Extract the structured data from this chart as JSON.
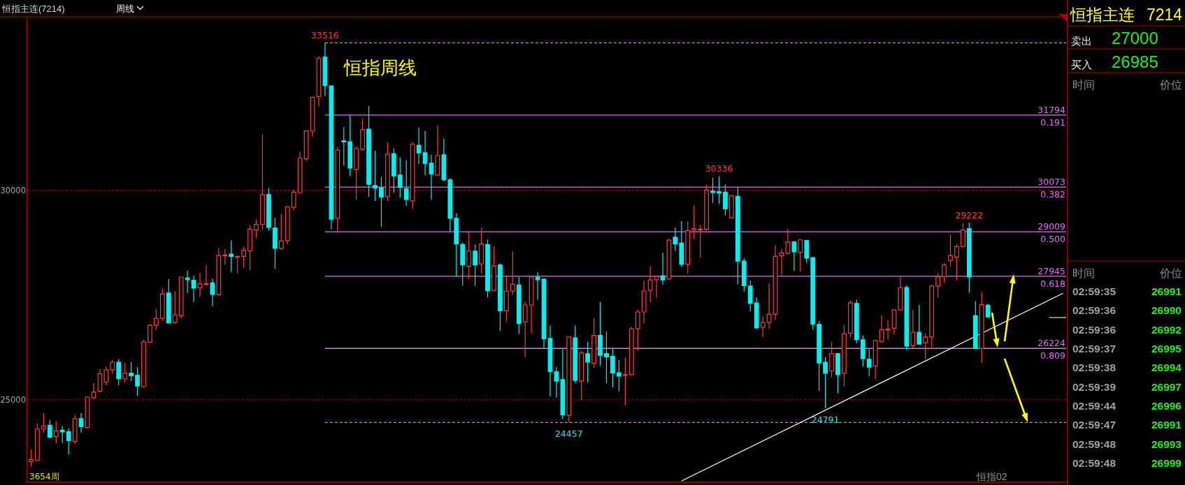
{
  "chart_data": [
    {
      "type": "candlestick",
      "title": "恒指主连(7214)",
      "subtitle": "周线",
      "categories": [
        null,
        null,
        null,
        null,
        null,
        null,
        null,
        null,
        null,
        null,
        null,
        null,
        null,
        null,
        null,
        null,
        null,
        null,
        null,
        null,
        null,
        null,
        null,
        null,
        null,
        null,
        null,
        null,
        null,
        null,
        null,
        null,
        null,
        null,
        null,
        null,
        null,
        null,
        null,
        null,
        null,
        null,
        null,
        null,
        null,
        null,
        null,
        null,
        null,
        null,
        null,
        null,
        null,
        null,
        null,
        null,
        null,
        null,
        null,
        null,
        null,
        null,
        null,
        null,
        null,
        null,
        null,
        null,
        null,
        null,
        null,
        null,
        null,
        null,
        null,
        null,
        null,
        null,
        null,
        null,
        null,
        null,
        null,
        null,
        null,
        null,
        null,
        null,
        null,
        null,
        null,
        null,
        null,
        null,
        null,
        null,
        null,
        null,
        null,
        null,
        null,
        null,
        null,
        null,
        null,
        null,
        null,
        null,
        null,
        null,
        null,
        null,
        null,
        null,
        null,
        null,
        null,
        null,
        null,
        null,
        null,
        null,
        null,
        null,
        null,
        null,
        null,
        null,
        null,
        null,
        null,
        null,
        null,
        null,
        null,
        null,
        null,
        null,
        null,
        null,
        null,
        null,
        null,
        null,
        null,
        null,
        null,
        null,
        null,
        null,
        null,
        null,
        null,
        null,
        null,
        null,
        null,
        null,
        null,
        null,
        null,
        null,
        null,
        null,
        null,
        null
      ],
      "ohlc": [
        [
          23520,
          23814,
          23398,
          23575
        ],
        [
          23551,
          24438,
          23537,
          24300
        ],
        [
          24300,
          24681,
          24216,
          24369
        ],
        [
          24390,
          24508,
          24078,
          24105
        ],
        [
          24119,
          24487,
          23953,
          24251
        ],
        [
          24272,
          24369,
          23967,
          24230
        ],
        [
          24237,
          24314,
          23696,
          24022
        ],
        [
          24008,
          24633,
          23939,
          24549
        ],
        [
          24549,
          24681,
          24216,
          24355
        ],
        [
          24341,
          25076,
          24314,
          25062
        ],
        [
          25049,
          25395,
          25014,
          25180
        ],
        [
          25201,
          25721,
          25173,
          25617
        ],
        [
          25416,
          25784,
          25347,
          25714
        ],
        [
          25714,
          25950,
          25617,
          25895
        ],
        [
          25895,
          25964,
          25340,
          25499
        ],
        [
          25499,
          25874,
          25402,
          25631
        ],
        [
          25631,
          25895,
          25444,
          25576
        ],
        [
          25583,
          25777,
          25097,
          25326
        ],
        [
          25312,
          26429,
          25284,
          26380
        ],
        [
          26373,
          26796,
          26352,
          26775
        ],
        [
          26775,
          27164,
          26658,
          26942
        ],
        [
          26942,
          27663,
          26886,
          27524
        ],
        [
          27545,
          27878,
          26831,
          26831
        ],
        [
          26845,
          27594,
          26803,
          27025
        ],
        [
          27004,
          27927,
          26942,
          27927
        ],
        [
          27906,
          28079,
          27545,
          27864
        ],
        [
          27850,
          27961,
          27330,
          27663
        ],
        [
          27670,
          28024,
          27455,
          27767
        ],
        [
          27753,
          28218,
          27726,
          27767
        ],
        [
          27788,
          27892,
          27233,
          27511
        ],
        [
          27504,
          28620,
          27476,
          28440
        ],
        [
          28440,
          28599,
          28218,
          28454
        ],
        [
          28475,
          28800,
          28045,
          28419
        ],
        [
          28412,
          28430,
          28017,
          28419
        ],
        [
          28419,
          28655,
          28142,
          28565
        ],
        [
          28551,
          29168,
          28086,
          29071
        ],
        [
          29050,
          29300,
          28849,
          29182
        ],
        [
          29182,
          31339,
          29050,
          29896
        ],
        [
          29896,
          30056,
          29036,
          29113
        ],
        [
          29099,
          29348,
          28128,
          28613
        ],
        [
          28613,
          29432,
          28578,
          28787
        ],
        [
          28794,
          29626,
          28717,
          29605
        ],
        [
          29591,
          30014,
          29522,
          29952
        ],
        [
          29938,
          30916,
          29917,
          30763
        ],
        [
          30749,
          31415,
          30701,
          31415
        ],
        [
          31408,
          32233,
          31269,
          32219
        ],
        [
          32233,
          33197,
          31997,
          33149
        ],
        [
          33176,
          33516,
          32247,
          32497
        ],
        [
          32490,
          32490,
          29064,
          29307
        ],
        [
          29328,
          31034,
          29015,
          30957
        ],
        [
          31179,
          31505,
          30590,
          31151
        ],
        [
          31158,
          31789,
          30340,
          30527
        ],
        [
          30493,
          31040,
          29778,
          30992
        ],
        [
          30978,
          31706,
          30943,
          31443
        ],
        [
          31457,
          32011,
          29841,
          30139
        ],
        [
          30111,
          30943,
          29744,
          30049
        ],
        [
          30056,
          30312,
          29126,
          29834
        ],
        [
          29848,
          31145,
          29744,
          30860
        ],
        [
          30874,
          30999,
          29938,
          30340
        ],
        [
          30361,
          30777,
          29827,
          30070
        ],
        [
          30035,
          30714,
          29626,
          29778
        ],
        [
          29744,
          31145,
          29556,
          31096
        ],
        [
          31075,
          31498,
          30624,
          30888
        ],
        [
          30895,
          31415,
          30354,
          30638
        ],
        [
          30645,
          30846,
          29778,
          30389
        ],
        [
          30361,
          31540,
          30361,
          30825
        ],
        [
          30846,
          31228,
          30208,
          30250
        ],
        [
          30250,
          30291,
          29015,
          29328
        ],
        [
          29328,
          29452,
          27941,
          28717
        ],
        [
          28703,
          28752,
          27719,
          28218
        ],
        [
          28183,
          28995,
          27892,
          28551
        ],
        [
          28544,
          28703,
          27719,
          28218
        ],
        [
          28239,
          29106,
          28010,
          28717
        ],
        [
          28703,
          28821,
          27434,
          27601
        ],
        [
          27608,
          28655,
          27608,
          28197
        ],
        [
          28218,
          28253,
          26644,
          27122
        ],
        [
          27122,
          27968,
          26879,
          27587
        ],
        [
          27594,
          28537,
          27504,
          27753
        ],
        [
          27740,
          27927,
          26574,
          26817
        ],
        [
          26859,
          27344,
          26013,
          27261
        ],
        [
          27261,
          27968,
          26588,
          27927
        ],
        [
          27927,
          28045,
          27386,
          27864
        ],
        [
          27878,
          27892,
          26241,
          26456
        ],
        [
          26463,
          26769,
          25076,
          25673
        ],
        [
          25666,
          25784,
          25049,
          25444
        ],
        [
          25479,
          26207,
          24528,
          24639
        ],
        [
          24626,
          26498,
          24457,
          26498
        ],
        [
          26477,
          26769,
          25395,
          25458
        ],
        [
          25444,
          26172,
          24993,
          26117
        ],
        [
          26096,
          26380,
          25409,
          25895
        ],
        [
          25867,
          26949,
          25756,
          26533
        ],
        [
          26533,
          27330,
          25811,
          26061
        ],
        [
          26103,
          26630,
          25395,
          26020
        ],
        [
          26034,
          26221,
          25291,
          25638
        ],
        [
          25645,
          25943,
          25201,
          25562
        ],
        [
          25583,
          25999,
          24868,
          25597
        ],
        [
          25597,
          26741,
          25583,
          26692
        ],
        [
          26692,
          27143,
          26165,
          27094
        ],
        [
          27094,
          27837,
          26831,
          27594
        ],
        [
          27608,
          28190,
          27323,
          27857
        ],
        [
          27864,
          27954,
          27441,
          27941
        ],
        [
          27954,
          28509,
          27746,
          27857
        ],
        [
          27878,
          28842,
          27878,
          28807
        ],
        [
          28877,
          29106,
          28551,
          28717
        ],
        [
          28738,
          29258,
          28169,
          28232
        ],
        [
          28232,
          29258,
          28003,
          29036
        ],
        [
          29050,
          29640,
          28828,
          29085
        ],
        [
          29057,
          29168,
          28391,
          29071
        ],
        [
          29071,
          30125,
          29036,
          30000
        ],
        [
          29979,
          30298,
          29695,
          29945
        ],
        [
          29966,
          30336,
          29674,
          29931
        ],
        [
          29952,
          30139,
          29397,
          29556
        ],
        [
          29341,
          29868,
          29328,
          29868
        ],
        [
          29854,
          30070,
          27753,
          28308
        ],
        [
          28308,
          28370,
          27580,
          27719
        ],
        [
          27712,
          27843,
          27108,
          27302
        ],
        [
          27309,
          27441,
          26692,
          26713
        ],
        [
          26727,
          26990,
          26498,
          26845
        ],
        [
          26845,
          27774,
          26692,
          27039
        ],
        [
          27039,
          28690,
          26900,
          28419
        ],
        [
          28433,
          28599,
          27975,
          28502
        ],
        [
          28495,
          29071,
          28468,
          28766
        ],
        [
          28766,
          28787,
          28079,
          28530
        ],
        [
          28516,
          28828,
          28051,
          28814
        ],
        [
          28801,
          28801,
          28266,
          28377
        ],
        [
          28391,
          28412,
          26671,
          26803
        ],
        [
          26796,
          26879,
          25215,
          25874
        ],
        [
          25895,
          26013,
          24791,
          25631
        ],
        [
          25687,
          26380,
          25534,
          26103
        ],
        [
          26103,
          26103,
          25153,
          25597
        ],
        [
          25631,
          26782,
          25319,
          26574
        ],
        [
          26588,
          27372,
          26498,
          27309
        ],
        [
          27296,
          27386,
          26345,
          26429
        ],
        [
          26429,
          26533,
          25791,
          25978
        ],
        [
          25964,
          26207,
          25562,
          25777
        ],
        [
          25804,
          26429,
          25499,
          26415
        ],
        [
          26394,
          27018,
          26359,
          26671
        ],
        [
          26658,
          26900,
          26436,
          26685
        ],
        [
          26706,
          27157,
          26553,
          27143
        ],
        [
          27143,
          27927,
          27129,
          27677
        ],
        [
          27677,
          27733,
          26186,
          26276
        ],
        [
          26290,
          27143,
          26234,
          26609
        ],
        [
          26609,
          27261,
          26311,
          26325
        ],
        [
          26359,
          26588,
          25964,
          26498
        ],
        [
          26498,
          27740,
          26255,
          27712
        ],
        [
          27712,
          28024,
          27434,
          27927
        ],
        [
          27941,
          28266,
          27788,
          28218
        ],
        [
          28322,
          28946,
          28183,
          28440
        ],
        [
          28405,
          28710,
          27850,
          28655
        ],
        [
          28655,
          29210,
          28634,
          29050
        ],
        [
          29085,
          29222,
          27559,
          27927
        ],
        [
          27004,
          27351,
          26221,
          26221
        ],
        [
          26221,
          27559,
          25874,
          27268
        ],
        [
          27254,
          27289,
          26963,
          26977
        ],
        null,
        null,
        null,
        null,
        null,
        null,
        null,
        null,
        null,
        null,
        null,
        null
      ],
      "series": [
        {
          "type": "line",
          "color": "#ffffff",
          "values": [
            null,
            null,
            null,
            null,
            null,
            null,
            null,
            null,
            null,
            null,
            null,
            null,
            null,
            null,
            null,
            null,
            null,
            null,
            null,
            null,
            null,
            null,
            null,
            null,
            null,
            null,
            null,
            null,
            null,
            null,
            null,
            null,
            null,
            null,
            null,
            null,
            null,
            null,
            null,
            null,
            null,
            null,
            null,
            null,
            null,
            null,
            null,
            null,
            null,
            null,
            null,
            null,
            null,
            null,
            null,
            null,
            null,
            null,
            null,
            null,
            null,
            null,
            null,
            null,
            null,
            null,
            null,
            null,
            null,
            null,
            null,
            null,
            null,
            null,
            null,
            null,
            null,
            null,
            null,
            null,
            null,
            null,
            null,
            null,
            null,
            null,
            null,
            null,
            null,
            null,
            null,
            null,
            null,
            null,
            null,
            null,
            null,
            null,
            null,
            null,
            null,
            null,
            null,
            null,
            23060,
            null,
            null,
            null,
            null,
            null,
            null,
            null,
            null,
            null,
            null,
            null,
            null,
            null,
            null,
            null,
            null,
            null,
            null,
            null,
            null,
            null,
            null,
            null,
            null,
            null,
            null,
            null,
            null,
            null,
            null,
            null,
            null,
            null,
            null,
            null,
            null,
            null,
            null,
            null,
            null,
            null,
            null,
            null,
            null,
            null,
            null,
            null,
            null,
            null,
            null,
            null,
            null,
            null,
            null,
            null,
            null,
            null,
            null,
            null,
            null,
            27540
          ]
        }
      ],
      "ylim": [
        23030,
        34140
      ],
      "yticks": [
        25000,
        30000
      ],
      "grid": "y",
      "tick_labels": "y",
      "ref_lines": [
        {
          "axis": "y",
          "value": 33516,
          "color": "#e070f0",
          "line_style": "dashed"
        },
        {
          "axis": "y",
          "value": 31794,
          "label": "31794",
          "color": "#e070f0"
        },
        {
          "axis": "y",
          "value": 30073,
          "label": "30073",
          "color": "#e070f0"
        },
        {
          "axis": "y",
          "value": 29009,
          "label": "29009",
          "color": "#e070f0"
        },
        {
          "axis": "y",
          "value": 27945,
          "label": "27945",
          "color": "#e070f0"
        },
        {
          "axis": "y",
          "value": 26224,
          "label": "26224",
          "color": "#e070f0"
        },
        {
          "axis": "y",
          "value": 24457,
          "color": "#e070f0",
          "line_style": "dashed"
        }
      ],
      "annotations": [
        {
          "text": "33516",
          "y": 33516
        },
        {
          "text": "30336",
          "y": 30336
        },
        {
          "text": "29222",
          "y": 29222
        },
        {
          "text": "24457",
          "y": 24457
        },
        {
          "text": "24791",
          "y": 24791
        },
        {
          "text": "0.191",
          "y": 31794
        },
        {
          "text": "0.382",
          "y": 30073
        },
        {
          "text": "0.500",
          "y": 29009
        },
        {
          "text": "0.618",
          "y": 27945
        },
        {
          "text": "0.809",
          "y": 26224
        },
        "恒指周线",
        "3654周",
        "恒指02"
      ]
    },
    {
      "type": "other",
      "title": "恒指主连",
      "subtitle": "7214",
      "annotations": [
        "卖出",
        "27000",
        "买入",
        "26985",
        "时间",
        "价位"
      ]
    },
    {
      "type": "heatmap",
      "ylabel": "时间",
      "categories": [
        "价位"
      ],
      "y_categories": [
        "02:59:35",
        "02:59:36",
        "02:59:36",
        "02:59:37",
        "02:59:38",
        "02:59:39",
        "02:59:44",
        "02:59:47",
        "02:59:48",
        "02:59:48"
      ],
      "cells": [
        [
          26991
        ],
        [
          26990
        ],
        [
          26992
        ],
        [
          26995
        ],
        [
          26994
        ],
        [
          26997
        ],
        [
          26996
        ],
        [
          26991
        ],
        [
          26993
        ],
        [
          26999
        ]
      ],
      "data_labels": true
    }
  ]
}
